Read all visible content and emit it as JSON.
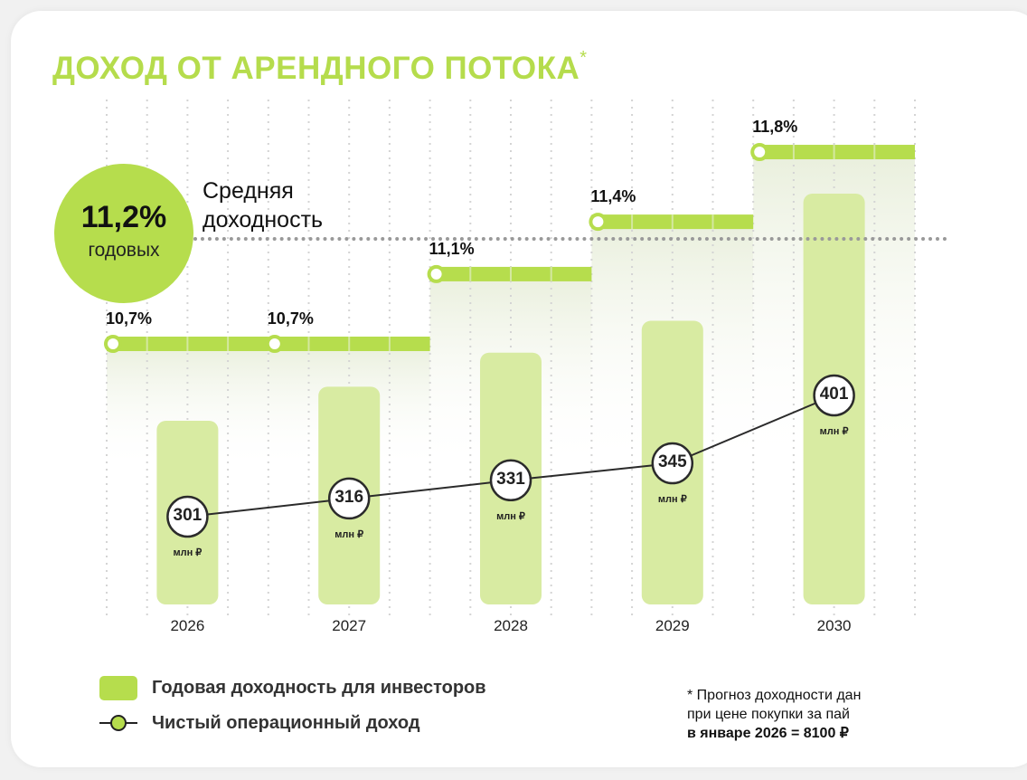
{
  "title": "ДОХОД ОТ АРЕНДНОГО ПОТОКА",
  "title_asterisk": "*",
  "average": {
    "value": "11,2%",
    "unit": "годовых",
    "label_line1": "Средняя",
    "label_line2": "доходность"
  },
  "legend": {
    "bars": "Годовая доходность для инвесторов",
    "line": "Чистый операционный доход"
  },
  "note": {
    "line1": "* Прогноз доходности дан",
    "line2": "при цене покупки за пай",
    "line3": "в январе 2026 = 8100 ₽"
  },
  "colors": {
    "green": "#b6dd4d",
    "bar": "#d8eba2",
    "line": "#2b2b2b"
  },
  "chart_data": {
    "type": "bar+line",
    "title": "ДОХОД ОТ АРЕНДНОГО ПОТОКА",
    "categories": [
      "2026",
      "2027",
      "2028",
      "2029",
      "2030"
    ],
    "series": [
      {
        "name": "Годовая доходность для инвесторов",
        "type": "step",
        "values": [
          10.7,
          10.7,
          11.1,
          11.4,
          11.8
        ],
        "labels": [
          "10,7%",
          "10,7%",
          "11,1%",
          "11,4%",
          "11,8%"
        ]
      },
      {
        "name": "Чистый операционный доход",
        "type": "line",
        "unit": "млн ₽",
        "values": [
          301,
          316,
          331,
          345,
          401
        ],
        "labels": [
          "301",
          "316",
          "331",
          "345",
          "401"
        ]
      }
    ],
    "average_yield": 11.2
  }
}
